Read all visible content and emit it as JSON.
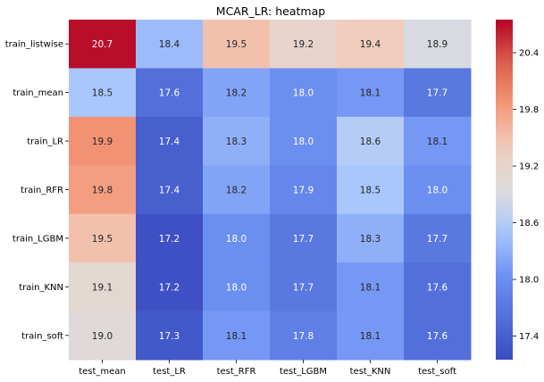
{
  "chart_data": {
    "type": "heatmap",
    "title": "MCAR_LR: heatmap",
    "rows": [
      "train_listwise",
      "train_mean",
      "train_LR",
      "train_RFR",
      "train_LGBM",
      "train_KNN",
      "train_soft"
    ],
    "columns": [
      "test_mean",
      "test_LR",
      "test_RFR",
      "test_LGBM",
      "test_KNN",
      "test_soft"
    ],
    "values": [
      [
        20.7,
        18.4,
        19.5,
        19.2,
        19.4,
        18.9
      ],
      [
        18.5,
        17.6,
        18.2,
        18.0,
        18.1,
        17.7
      ],
      [
        19.9,
        17.4,
        18.3,
        18.0,
        18.6,
        18.1
      ],
      [
        19.8,
        17.4,
        18.2,
        17.9,
        18.5,
        18.0
      ],
      [
        19.5,
        17.2,
        18.0,
        17.7,
        18.3,
        17.7
      ],
      [
        19.1,
        17.2,
        18.0,
        17.7,
        18.1,
        17.6
      ],
      [
        19.0,
        17.3,
        18.1,
        17.8,
        18.1,
        17.6
      ]
    ],
    "value_format": "1 decimal",
    "colormap": "coolwarm",
    "color_range": [
      17.15,
      20.75
    ],
    "colorbar": {
      "ticks": [
        17.4,
        18.0,
        18.6,
        19.2,
        19.8,
        20.4
      ],
      "tick_labels": [
        "17.4",
        "18.0",
        "18.6",
        "19.2",
        "19.8",
        "20.4"
      ]
    },
    "grid": false,
    "legend": "colorbar-right"
  }
}
